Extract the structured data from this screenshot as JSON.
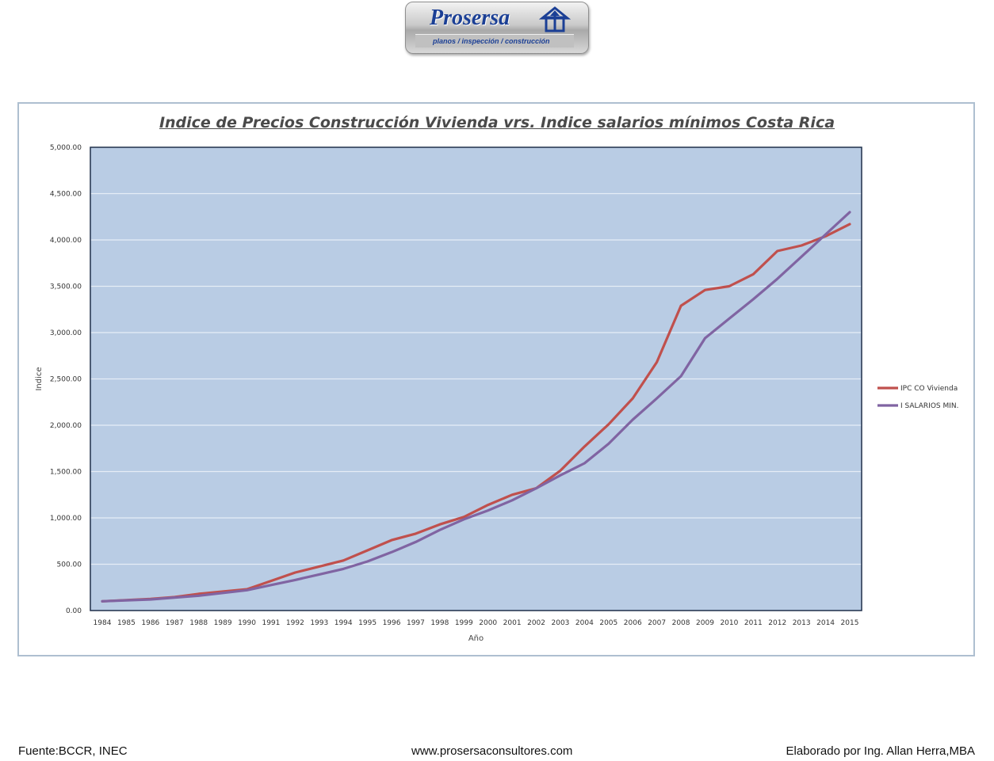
{
  "logo": {
    "name": "Prosersa",
    "tagline": "planos / inspección / construcción"
  },
  "footer": {
    "source": "Fuente:BCCR, INEC",
    "website": "www.prosersaconsultores.com",
    "author": "Elaborado por Ing. Allan Herra,MBA"
  },
  "colors": {
    "plot_background": "#b9cce4",
    "frame_border": "#aebfd0",
    "series_1": "#c0504d",
    "series_2": "#8064a2"
  },
  "chart_data": {
    "type": "line",
    "title": "Indice de Precios Construcción Vivienda vrs. Indice salarios mínimos Costa Rica",
    "xlabel": "Año",
    "ylabel": "Indice",
    "ylim": [
      0,
      5000
    ],
    "yticks": [
      "0.00",
      "500.00",
      "1,000.00",
      "1,500.00",
      "2,000.00",
      "2,500.00",
      "3,000.00",
      "3,500.00",
      "4,000.00",
      "4,500.00",
      "5,000.00"
    ],
    "grid": true,
    "legend_position": "right",
    "categories": [
      "1984",
      "1985",
      "1986",
      "1987",
      "1988",
      "1989",
      "1990",
      "1991",
      "1992",
      "1993",
      "1994",
      "1995",
      "1996",
      "1997",
      "1998",
      "1999",
      "2000",
      "2001",
      "2002",
      "2003",
      "2004",
      "2005",
      "2006",
      "2007",
      "2008",
      "2009",
      "2010",
      "2011",
      "2012",
      "2013",
      "2014",
      "2015"
    ],
    "series": [
      {
        "name": "IPC CO Vivienda",
        "color": "#c0504d",
        "values": [
          100,
          113,
          125,
          145,
          180,
          205,
          230,
          320,
          410,
          475,
          540,
          650,
          760,
          830,
          930,
          1010,
          1140,
          1250,
          1320,
          1510,
          1770,
          2010,
          2290,
          2680,
          3290,
          3460,
          3500,
          3630,
          3880,
          3940,
          4040,
          4170
        ]
      },
      {
        "name": "I SALARIOS MIN.",
        "color": "#8064a2",
        "values": [
          100,
          110,
          120,
          140,
          160,
          190,
          220,
          275,
          330,
          390,
          450,
          530,
          630,
          740,
          870,
          985,
          1080,
          1190,
          1320,
          1460,
          1590,
          1800,
          2060,
          2290,
          2530,
          2940,
          3150,
          3360,
          3580,
          3820,
          4060,
          4300
        ]
      }
    ]
  }
}
